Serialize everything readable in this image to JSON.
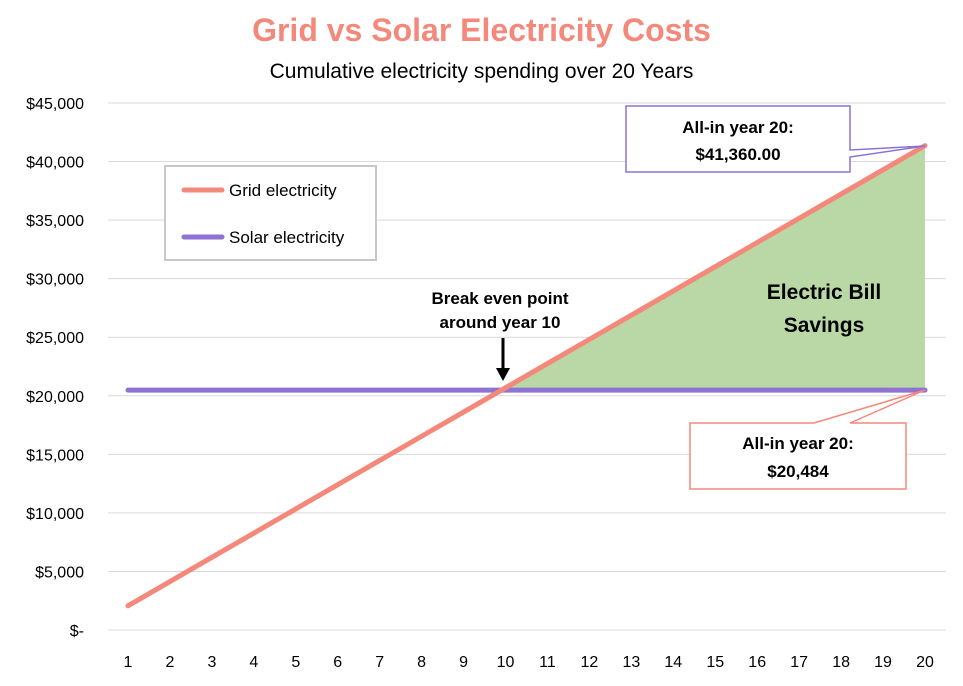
{
  "chart_data": {
    "type": "line",
    "title": "Grid vs Solar Electricity Costs",
    "subtitle": "Cumulative electricity spending over 20 Years",
    "title_color": "#F4897B",
    "x": [
      1,
      2,
      3,
      4,
      5,
      6,
      7,
      8,
      9,
      10,
      11,
      12,
      13,
      14,
      15,
      16,
      17,
      18,
      19,
      20
    ],
    "x_tick_labels": [
      "1",
      "2",
      "3",
      "4",
      "5",
      "6",
      "7",
      "8",
      "9",
      "10",
      "11",
      "12",
      "13",
      "14",
      "15",
      "16",
      "17",
      "18",
      "19",
      "20"
    ],
    "ylim": [
      0,
      45000
    ],
    "y_ticks": [
      0,
      5000,
      10000,
      15000,
      20000,
      25000,
      30000,
      35000,
      40000,
      45000
    ],
    "y_tick_labels": [
      "$-",
      "$5,000",
      "$10,000",
      "$15,000",
      "$20,000",
      "$25,000",
      "$30,000",
      "$35,000",
      "$40,000",
      "$45,000"
    ],
    "grid": true,
    "legend_position": "top-left",
    "series": [
      {
        "name": "Grid electricity",
        "color": "#F4897B",
        "values": [
          2068,
          4136,
          6204,
          8272,
          10340,
          12408,
          14476,
          16544,
          18612,
          20680,
          22748,
          24816,
          26884,
          28952,
          31020,
          33088,
          35156,
          37224,
          39292,
          41360
        ]
      },
      {
        "name": "Solar electricity",
        "color": "#8E72D4",
        "values": [
          20484,
          20484,
          20484,
          20484,
          20484,
          20484,
          20484,
          20484,
          20484,
          20484,
          20484,
          20484,
          20484,
          20484,
          20484,
          20484,
          20484,
          20484,
          20484,
          20484
        ]
      }
    ],
    "savings_fill_color": "#B9D8A5",
    "annotations": {
      "savings_label": [
        "Electric Bill",
        "Savings"
      ],
      "break_even": [
        "Break even point",
        "around year 10"
      ],
      "grid_callout": [
        "All-in year 20:",
        "$41,360.00"
      ],
      "solar_callout": [
        "All-in year 20:",
        "$20,484"
      ]
    }
  }
}
